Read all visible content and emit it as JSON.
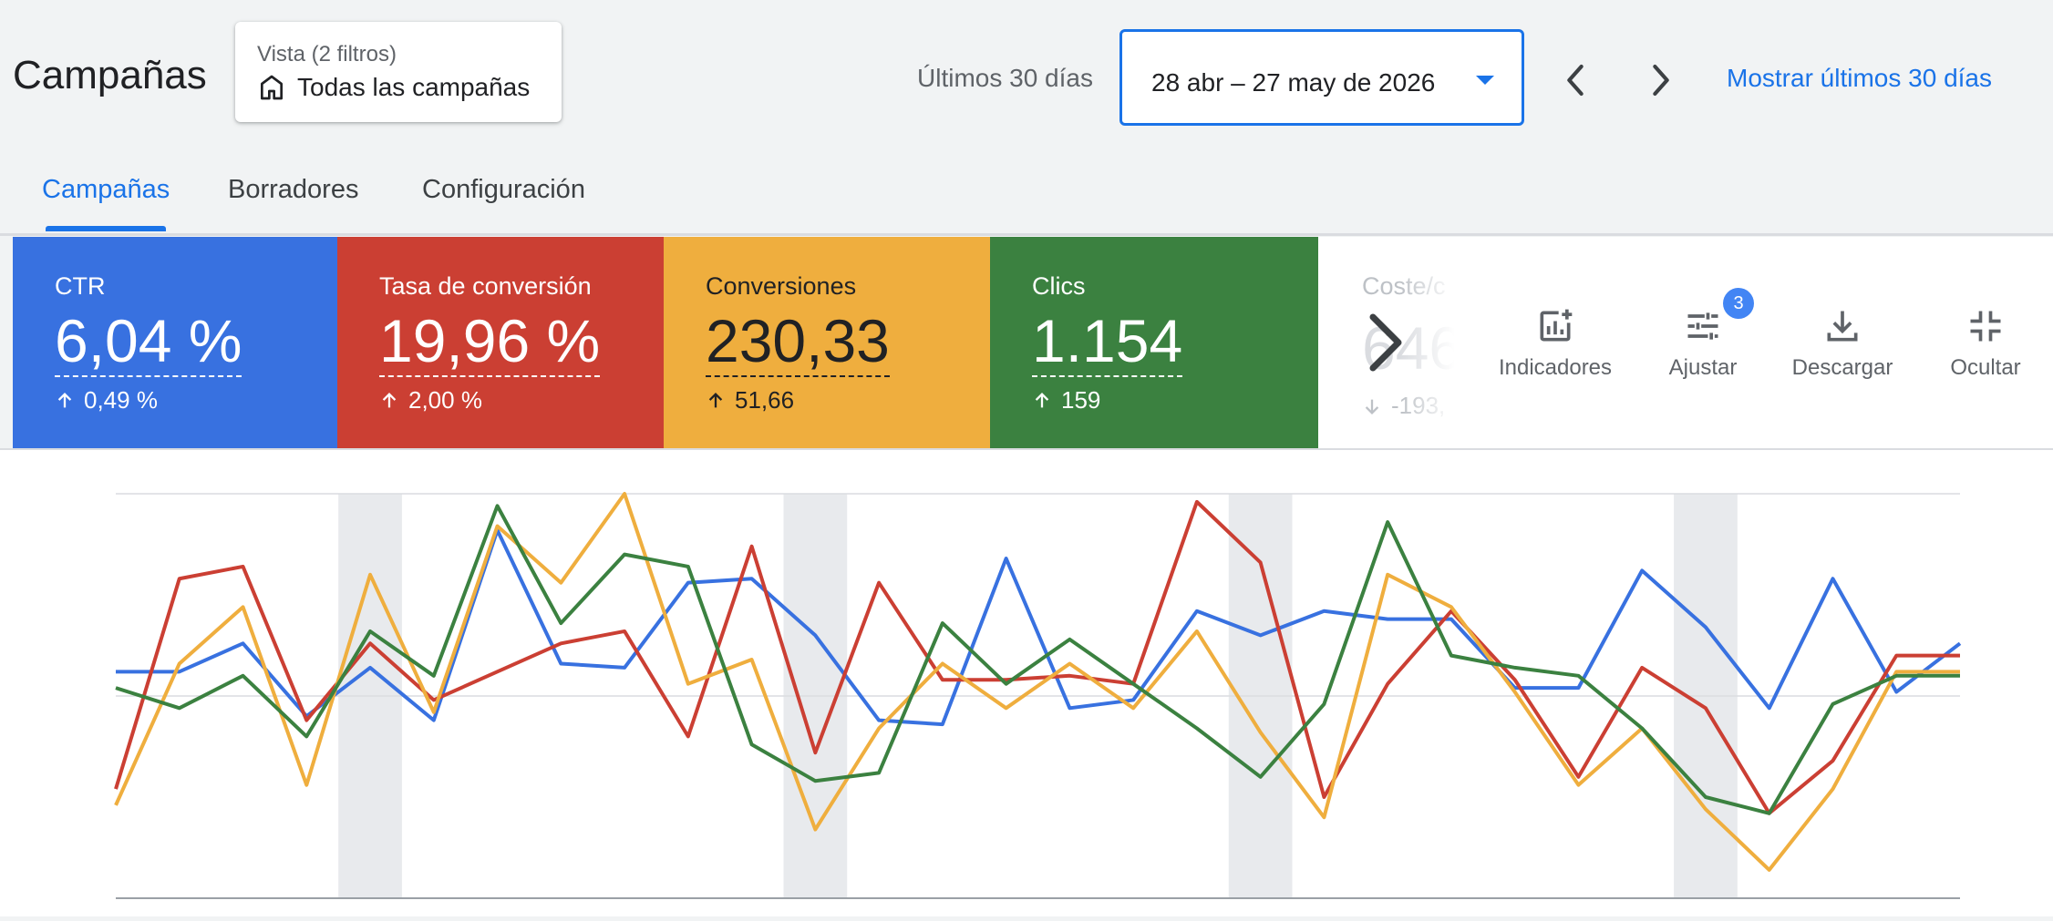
{
  "header": {
    "title": "Campañas",
    "view": {
      "label": "Vista (2 filtros)",
      "value": "Todas las campañas",
      "icon": "building-icon"
    },
    "date_range_label": "Últimos 30 días",
    "date_range_value": "28 abr – 27 may de 2026",
    "show_last_link": "Mostrar últimos 30 días"
  },
  "tabs": [
    {
      "label": "Campañas",
      "active": true
    },
    {
      "label": "Borradores",
      "active": false
    },
    {
      "label": "Configuración",
      "active": false
    }
  ],
  "kpis": [
    {
      "label": "CTR",
      "value": "6,04 %",
      "change": "0,49 %",
      "direction": "up",
      "color": "#3871e0"
    },
    {
      "label": "Tasa de conversión",
      "value": "19,96 %",
      "change": "2,00 %",
      "direction": "up",
      "color": "#cb3f33"
    },
    {
      "label": "Conversiones",
      "value": "230,33",
      "change": "51,66",
      "direction": "up",
      "color": "#efae3e"
    },
    {
      "label": "Clics",
      "value": "1.154",
      "change": "159",
      "direction": "up",
      "color": "#3b8140"
    },
    {
      "label": "Coste/c",
      "value": "646",
      "change": "-193,",
      "direction": "down",
      "color": "#ffffff"
    }
  ],
  "tools": [
    {
      "label": "Indicadores",
      "icon": "add-chart-icon"
    },
    {
      "label": "Ajustar",
      "icon": "tune-icon",
      "badge": "3"
    },
    {
      "label": "Descargar",
      "icon": "download-icon"
    },
    {
      "label": "Ocultar",
      "icon": "collapse-icon"
    }
  ],
  "chart_data": {
    "type": "line",
    "points": 30,
    "weekend_bands": [
      4,
      11,
      18,
      25
    ],
    "grid": true,
    "series": [
      {
        "color": "#3871e0",
        "values": [
          0.56,
          0.56,
          0.63,
          0.45,
          0.57,
          0.44,
          0.91,
          0.58,
          0.57,
          0.78,
          0.79,
          0.65,
          0.44,
          0.43,
          0.84,
          0.47,
          0.49,
          0.71,
          0.65,
          0.71,
          0.69,
          0.69,
          0.52,
          0.52,
          0.81,
          0.67,
          0.47,
          0.79,
          0.51,
          0.63
        ]
      },
      {
        "color": "#cb3f33",
        "values": [
          0.27,
          0.79,
          0.82,
          0.44,
          0.63,
          0.49,
          0.56,
          0.63,
          0.66,
          0.4,
          0.87,
          0.36,
          0.78,
          0.54,
          0.54,
          0.55,
          0.53,
          0.98,
          0.83,
          0.25,
          0.53,
          0.71,
          0.54,
          0.3,
          0.57,
          0.47,
          0.21,
          0.34,
          0.6,
          0.6
        ]
      },
      {
        "color": "#efae3e",
        "values": [
          0.23,
          0.58,
          0.72,
          0.28,
          0.8,
          0.46,
          0.92,
          0.78,
          1.0,
          0.53,
          0.59,
          0.17,
          0.42,
          0.58,
          0.47,
          0.58,
          0.47,
          0.66,
          0.41,
          0.2,
          0.8,
          0.72,
          0.51,
          0.28,
          0.42,
          0.22,
          0.07,
          0.27,
          0.56,
          0.56
        ]
      },
      {
        "color": "#3b8140",
        "values": [
          0.52,
          0.47,
          0.55,
          0.4,
          0.66,
          0.55,
          0.97,
          0.68,
          0.85,
          0.82,
          0.38,
          0.29,
          0.31,
          0.68,
          0.53,
          0.64,
          0.53,
          0.42,
          0.3,
          0.48,
          0.93,
          0.6,
          0.57,
          0.55,
          0.42,
          0.25,
          0.21,
          0.48,
          0.55,
          0.55
        ]
      }
    ]
  }
}
